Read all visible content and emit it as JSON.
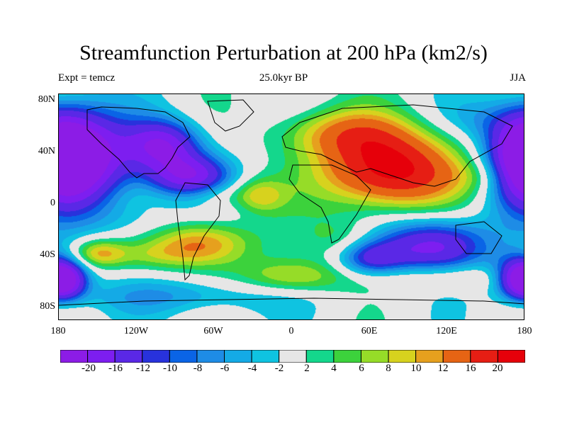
{
  "header": {
    "title": "Streamfunction Perturbation at 200 hPa (km2/s)",
    "left_label": "Expt = temcz",
    "center_label": "25.0kyr BP",
    "right_label": "JJA"
  },
  "chart_data": {
    "type": "heatmap",
    "title": "Streamfunction Perturbation at 200 hPa (km2/s)",
    "projection": "cylindrical equidistant",
    "xlim": [
      -180,
      180
    ],
    "ylim": [
      -90,
      90
    ],
    "x_ticks": [
      "180",
      "120W",
      "60W",
      "0",
      "60E",
      "120E",
      "180"
    ],
    "x_tick_values": [
      -180,
      -120,
      -60,
      0,
      60,
      120,
      180
    ],
    "y_ticks": [
      "80N",
      "40N",
      "0",
      "40S",
      "80S"
    ],
    "y_tick_values": [
      80,
      40,
      0,
      -40,
      -80
    ],
    "colorbar": {
      "labels": [
        "-20",
        "-16",
        "-12",
        "-10",
        "-8",
        "-6",
        "-4",
        "-2",
        "2",
        "4",
        "6",
        "8",
        "10",
        "12",
        "16",
        "20"
      ],
      "colors": [
        "#8c1ce6",
        "#7d1ef0",
        "#5a28e6",
        "#2832dc",
        "#0a64e6",
        "#1e8ce6",
        "#14aae6",
        "#0fc3e1",
        "#e6e6e6",
        "#14d78c",
        "#3cd23c",
        "#96dc28",
        "#d7d21e",
        "#e6a01e",
        "#e66414",
        "#e61e14",
        "#e6000a"
      ]
    },
    "field_centers": [
      {
        "lon": 75,
        "lat": 30,
        "value": 22,
        "spread_lon": 38,
        "spread_lat": 22
      },
      {
        "lon": 40,
        "lat": 60,
        "value": 10,
        "spread_lon": 35,
        "spread_lat": 14
      },
      {
        "lon": -70,
        "lat": -28,
        "value": 13,
        "spread_lon": 28,
        "spread_lat": 13
      },
      {
        "lon": -25,
        "lat": 10,
        "value": 8,
        "spread_lon": 14,
        "spread_lat": 10
      },
      {
        "lon": 0,
        "lat": -55,
        "value": 9,
        "spread_lon": 30,
        "spread_lat": 10
      },
      {
        "lon": -150,
        "lat": -36,
        "value": 10,
        "spread_lon": 15,
        "spread_lat": 8
      },
      {
        "lon": 40,
        "lat": -25,
        "value": 5,
        "spread_lon": 20,
        "spread_lat": 12
      },
      {
        "lon": 120,
        "lat": -55,
        "value": 6,
        "spread_lon": 40,
        "spread_lat": 8
      },
      {
        "lon": -160,
        "lat": 40,
        "value": -20,
        "spread_lon": 28,
        "spread_lat": 26
      },
      {
        "lon": -100,
        "lat": 50,
        "value": -18,
        "spread_lon": 20,
        "spread_lat": 14
      },
      {
        "lon": -80,
        "lat": 25,
        "value": -18,
        "spread_lon": 22,
        "spread_lat": 12
      },
      {
        "lon": 180,
        "lat": 40,
        "value": -20,
        "spread_lon": 20,
        "spread_lat": 25
      },
      {
        "lon": 110,
        "lat": -30,
        "value": -18,
        "spread_lon": 30,
        "spread_lat": 16
      },
      {
        "lon": 60,
        "lat": -40,
        "value": -12,
        "spread_lon": 18,
        "spread_lat": 10
      },
      {
        "lon": 178,
        "lat": -55,
        "value": -18,
        "spread_lon": 15,
        "spread_lat": 12
      },
      {
        "lon": -178,
        "lat": -58,
        "value": -16,
        "spread_lon": 12,
        "spread_lat": 10
      },
      {
        "lon": -80,
        "lat": -70,
        "value": -6,
        "spread_lon": 60,
        "spread_lat": 10
      },
      {
        "lon": -120,
        "lat": -10,
        "value": -4,
        "spread_lon": 30,
        "spread_lat": 12
      },
      {
        "lon": 150,
        "lat": 70,
        "value": -4,
        "spread_lon": 30,
        "spread_lat": 12
      },
      {
        "lon": -110,
        "lat": -38,
        "value": 4,
        "spread_lon": 25,
        "spread_lat": 8
      },
      {
        "lon": -60,
        "lat": 10,
        "value": 5,
        "spread_lon": 20,
        "spread_lat": 8
      },
      {
        "lon": 150,
        "lat": 25,
        "value": 4,
        "spread_lon": 20,
        "spread_lat": 10
      }
    ]
  }
}
